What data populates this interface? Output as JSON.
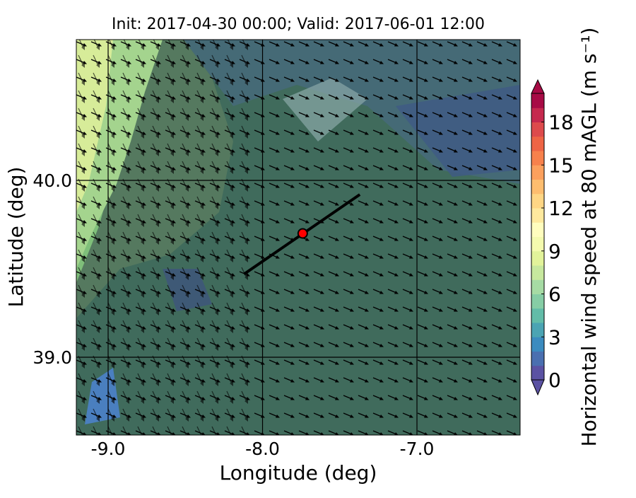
{
  "chart_data": {
    "type": "map",
    "title": "Init: 2017-04-30 00:00; Valid: 2017-06-01 12:00",
    "x_label": "Longitude (deg)",
    "y_label": "Latitude (deg)",
    "xlim": [
      -9.206,
      -6.332
    ],
    "ylim": [
      38.56,
      40.796
    ],
    "xticks": [
      {
        "value": -9,
        "label": "-9.0"
      },
      {
        "value": -8,
        "label": "-8.0"
      },
      {
        "value": -7,
        "label": "-7.0"
      }
    ],
    "yticks": [
      {
        "value": 39,
        "label": "39.0"
      },
      {
        "value": 40,
        "label": "40.0"
      }
    ],
    "grid": true,
    "transect": {
      "x": [
        -8.12,
        -7.37
      ],
      "y": [
        39.47,
        39.92
      ],
      "color": "#000000"
    },
    "site": {
      "x": -7.74,
      "y": 39.7,
      "color": "#ff0000"
    },
    "colorbar": {
      "label": "Horizontal wind speed at 80 mAGL (m s⁻¹)",
      "clim": [
        0,
        20
      ],
      "ticks": [
        0,
        3,
        6,
        9,
        12,
        15,
        18
      ],
      "colors": [
        "#5b52a3",
        "#4a6fb0",
        "#3b8bbf",
        "#4ba4b3",
        "#62bca8",
        "#86cda5",
        "#a6dba4",
        "#c7e89e",
        "#e2f39a",
        "#f4faae",
        "#fffdbe",
        "#fee99e",
        "#fed685",
        "#fdbd6f",
        "#fca05d",
        "#f7814c",
        "#ee6445",
        "#dd4a4c",
        "#c5294e",
        "#a70b45"
      ]
    }
  }
}
